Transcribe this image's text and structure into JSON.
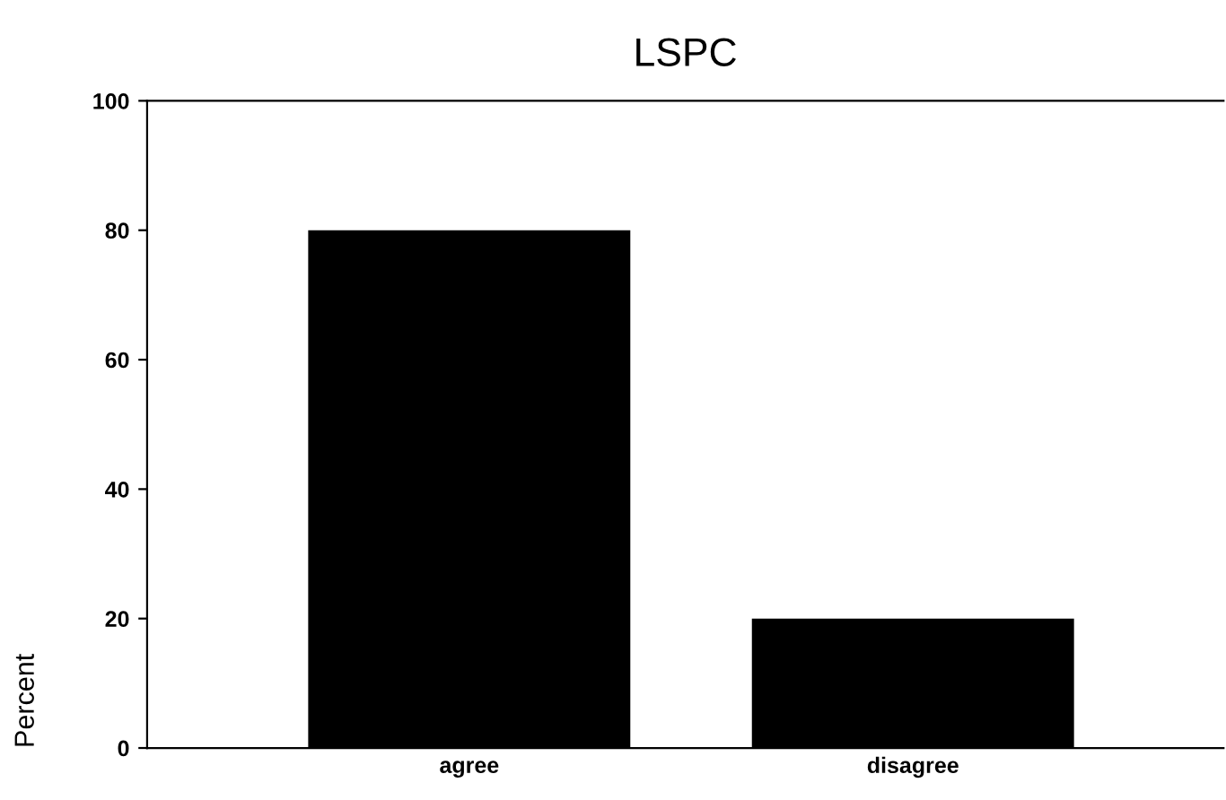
{
  "chart_data": {
    "type": "bar",
    "title": "LSPC",
    "ylabel": "Percent",
    "categories": [
      "agree",
      "disagree"
    ],
    "values": [
      80,
      20
    ],
    "color": "#000000",
    "ylim": [
      0,
      100
    ],
    "yticks": [
      0,
      20,
      40,
      60,
      80,
      100
    ],
    "grid": false,
    "legend": false
  }
}
